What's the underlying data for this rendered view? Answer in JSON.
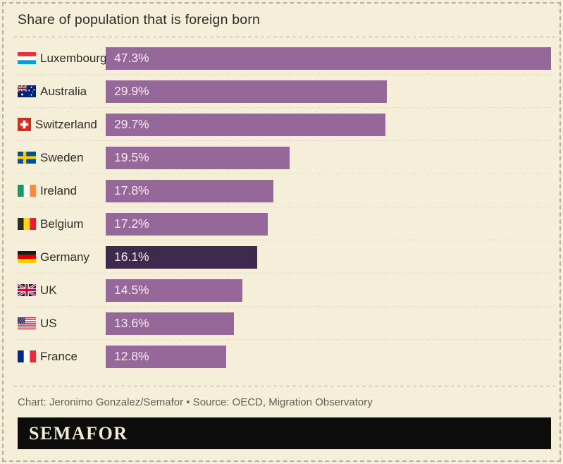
{
  "title": "Share of population that is foreign born",
  "chart_data": {
    "type": "bar",
    "orientation": "horizontal",
    "value_unit": "%",
    "x_max": 47.3,
    "grid": false,
    "legend": false,
    "categories": [
      "Luxembourg",
      "Australia",
      "Switzerland",
      "Sweden",
      "Ireland",
      "Belgium",
      "Germany",
      "UK",
      "US",
      "France"
    ],
    "values": [
      47.3,
      29.9,
      29.7,
      19.5,
      17.8,
      17.2,
      16.1,
      14.5,
      13.6,
      12.8
    ],
    "highlighted_category": "Germany",
    "rows": [
      {
        "country": "Luxembourg",
        "value": 47.3,
        "display": "47.3%",
        "flag": "lu",
        "highlighted": false
      },
      {
        "country": "Australia",
        "value": 29.9,
        "display": "29.9%",
        "flag": "au",
        "highlighted": false
      },
      {
        "country": "Switzerland",
        "value": 29.7,
        "display": "29.7%",
        "flag": "ch",
        "highlighted": false
      },
      {
        "country": "Sweden",
        "value": 19.5,
        "display": "19.5%",
        "flag": "se",
        "highlighted": false
      },
      {
        "country": "Ireland",
        "value": 17.8,
        "display": "17.8%",
        "flag": "ie",
        "highlighted": false
      },
      {
        "country": "Belgium",
        "value": 17.2,
        "display": "17.2%",
        "flag": "be",
        "highlighted": false
      },
      {
        "country": "Germany",
        "value": 16.1,
        "display": "16.1%",
        "flag": "de",
        "highlighted": true
      },
      {
        "country": "UK",
        "value": 14.5,
        "display": "14.5%",
        "flag": "uk",
        "highlighted": false
      },
      {
        "country": "US",
        "value": 13.6,
        "display": "13.6%",
        "flag": "us",
        "highlighted": false
      },
      {
        "country": "France",
        "value": 12.8,
        "display": "12.8%",
        "flag": "fr",
        "highlighted": false
      }
    ]
  },
  "footer": {
    "credit": "Chart: Jeronimo Gonzalez/Semafor • Source: OECD, Migration Observatory",
    "logo": "SEMAFOR"
  },
  "colors": {
    "background": "#f5efda",
    "bar": "#96689a",
    "bar-highlight": "#3e2a4d",
    "value-text": "#f6e8f0",
    "text": "#2d2c26",
    "credit-text": "#5f6157",
    "border": "#b6b09d",
    "separator": "#c8c2ad",
    "logo-bg": "#0c0c0a",
    "logo-text": "#f3ecd7"
  }
}
